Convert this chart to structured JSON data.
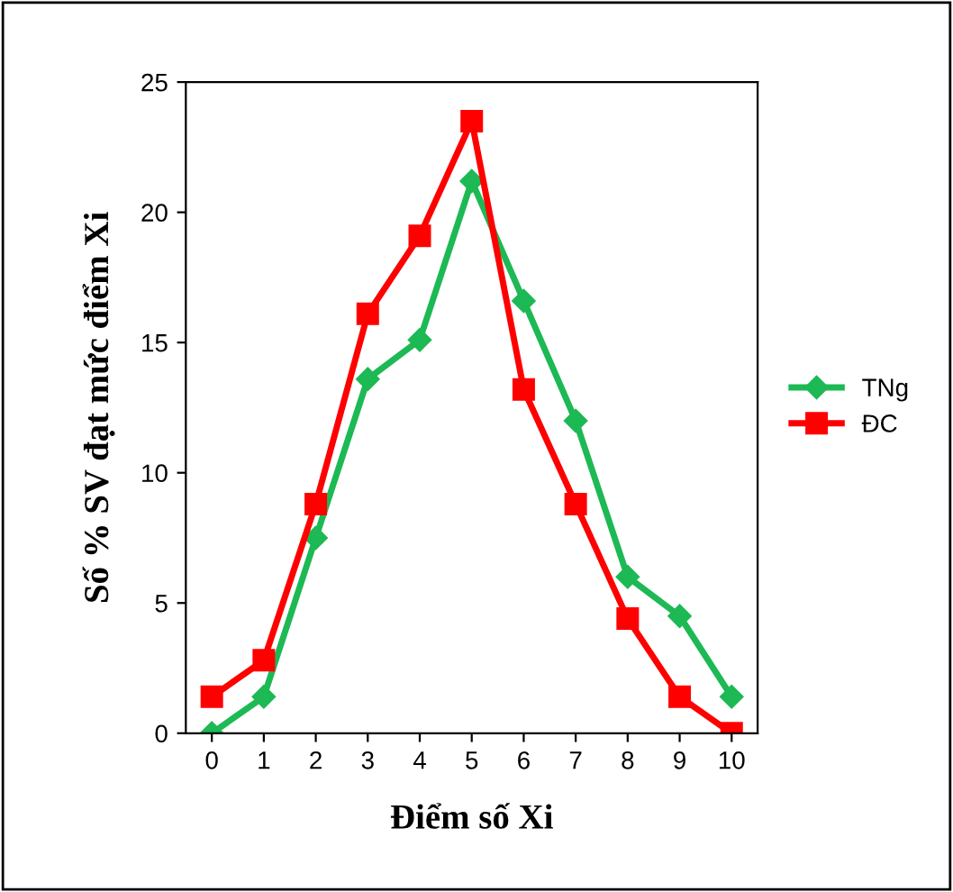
{
  "chart_data": {
    "type": "line",
    "xlabel": "Điểm số Xi",
    "ylabel": "Số % SV đạt mức điểm Xi",
    "categories": [
      "0",
      "1",
      "2",
      "3",
      "4",
      "5",
      "6",
      "7",
      "8",
      "9",
      "10"
    ],
    "series": [
      {
        "name": "TNg",
        "color": "#1db954",
        "marker": "diamond",
        "values": [
          0,
          1.4,
          7.5,
          13.6,
          15.1,
          21.2,
          16.6,
          12.0,
          6.0,
          4.5,
          1.4
        ]
      },
      {
        "name": "ĐC",
        "color": "#ff0000",
        "marker": "square",
        "values": [
          1.4,
          2.8,
          8.8,
          16.1,
          19.1,
          23.5,
          13.2,
          8.8,
          4.4,
          1.4,
          0
        ]
      }
    ],
    "ylim": [
      0,
      25
    ],
    "yticks": [
      0,
      5,
      10,
      15,
      20,
      25
    ],
    "grid": false,
    "legend": "right",
    "line_style": "solid"
  }
}
